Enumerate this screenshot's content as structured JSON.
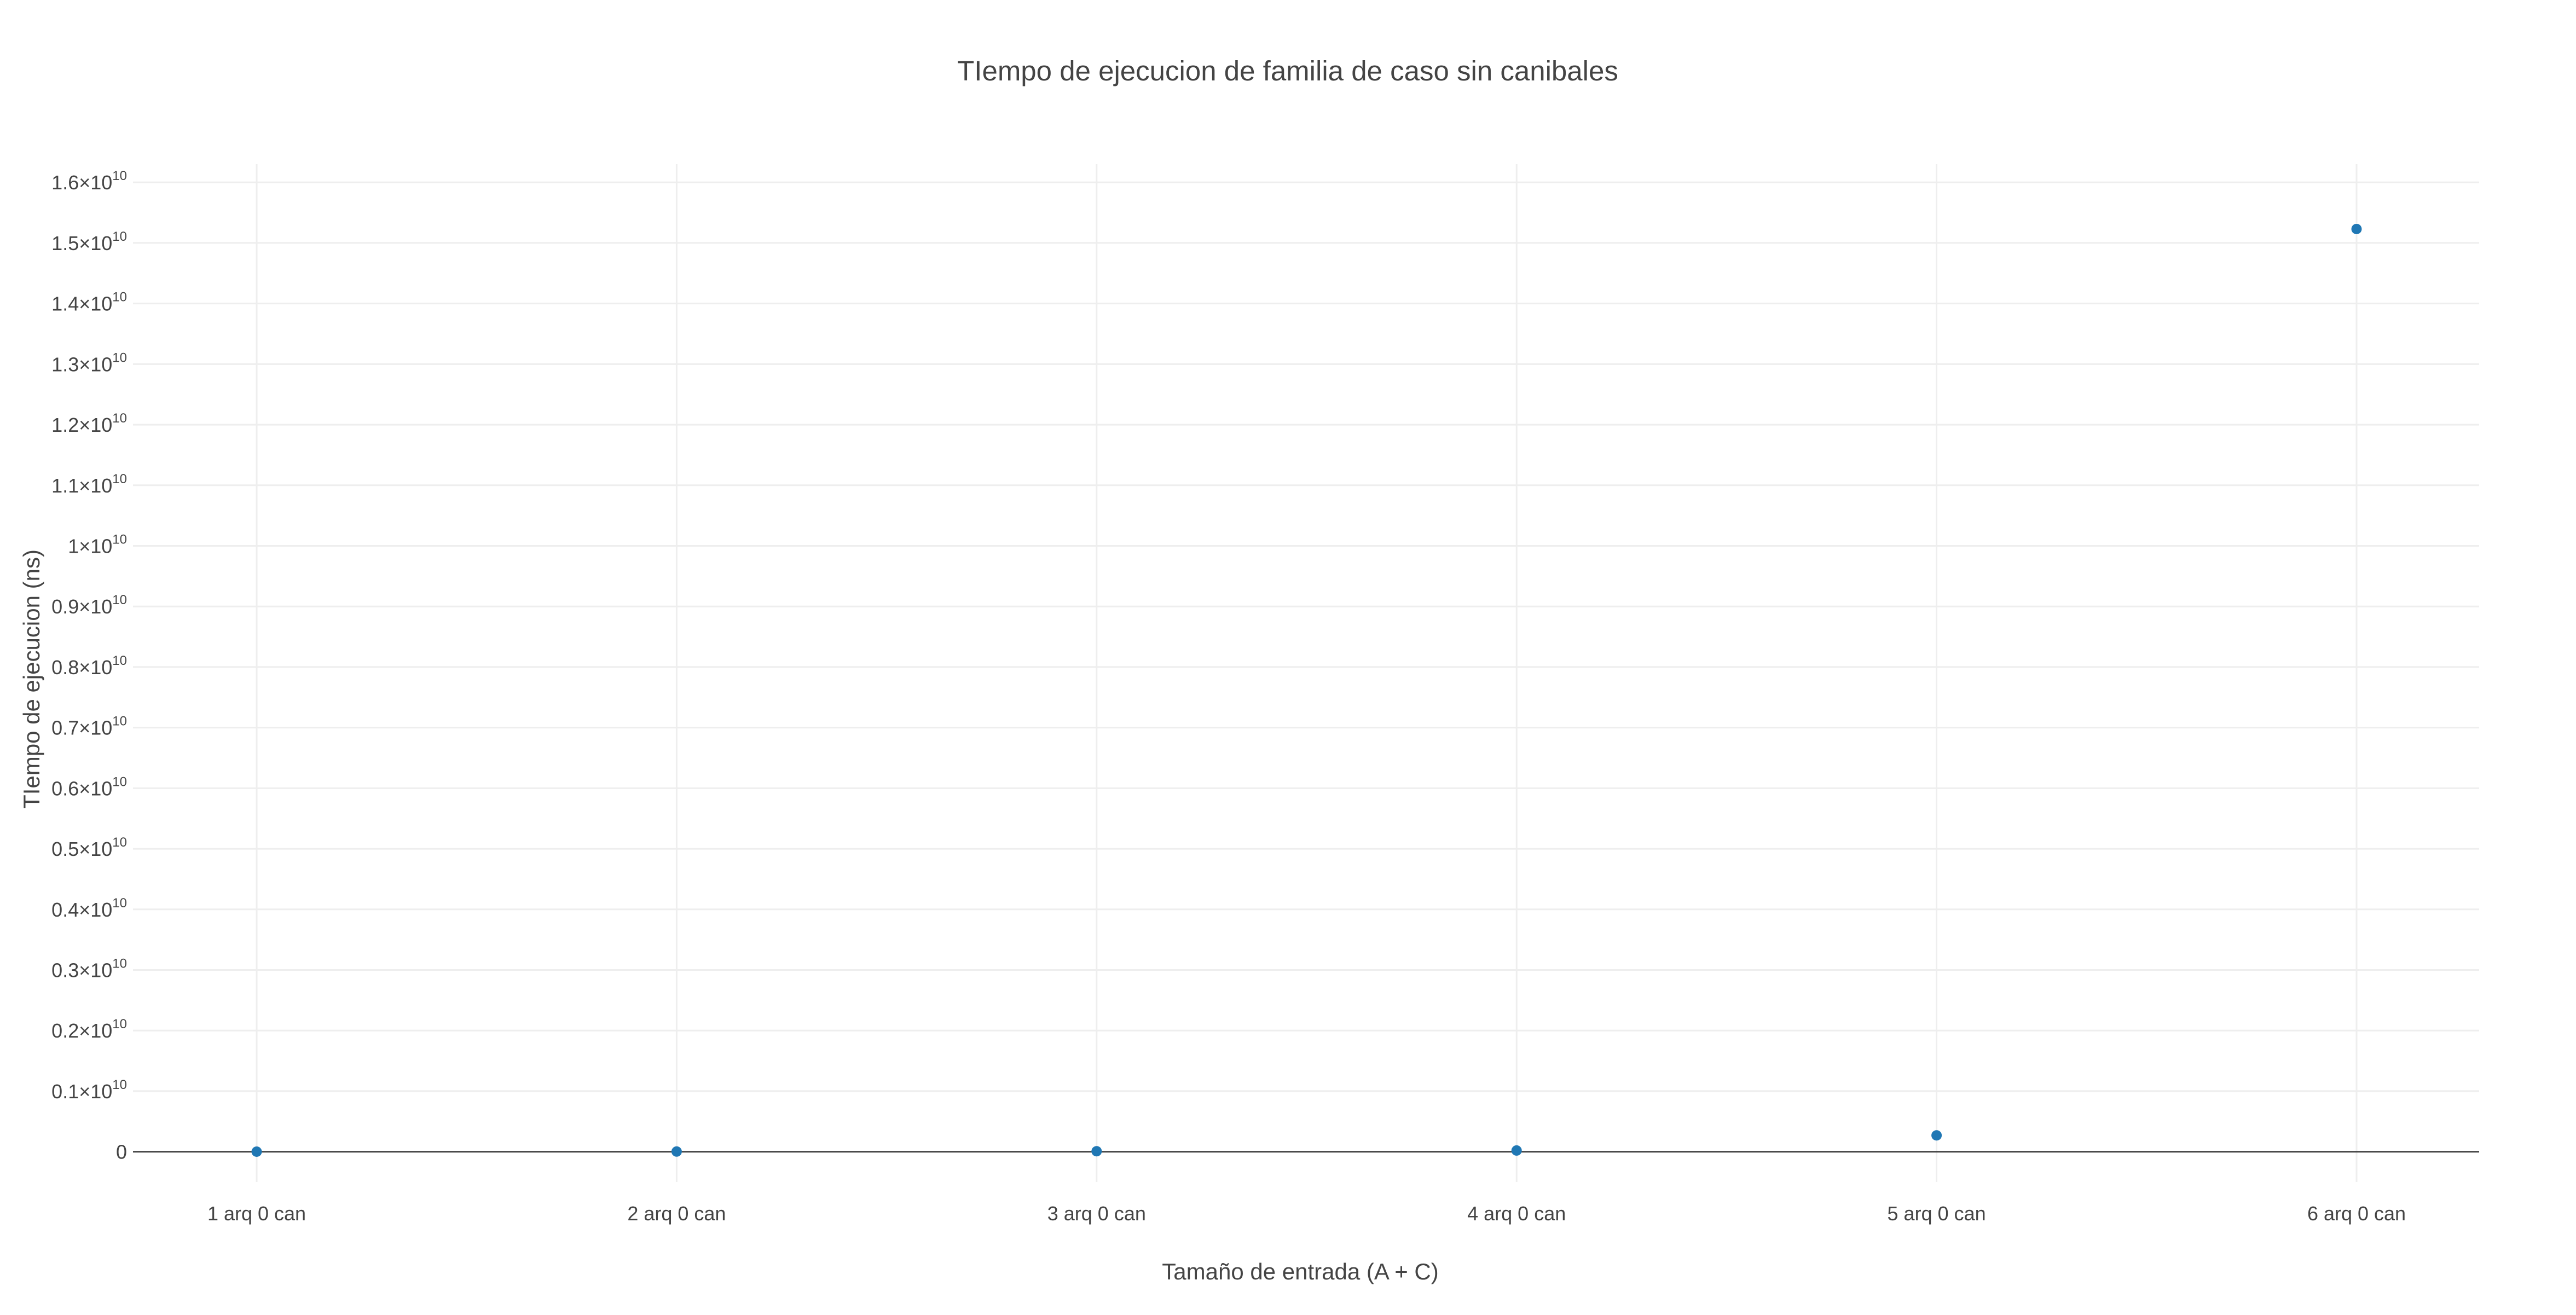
{
  "chart_data": {
    "type": "scatter",
    "title": "TIempo de ejecucion de familia de caso sin canibales",
    "xlabel": "Tamaño de entrada (A + C)",
    "ylabel": "TIempo de ejecucion (ns)",
    "categories": [
      "1 arq 0 can",
      "2 arq 0 can",
      "3 arq 0 can",
      "4 arq 0 can",
      "5 arq 0 can",
      "6 arq 0 can"
    ],
    "values": [
      1000000,
      3000000,
      8000000,
      20000000,
      270000000,
      15230000000
    ],
    "ylim": [
      -500000000,
      16300000000
    ],
    "yticks": [
      {
        "value": 0,
        "mantissa": "0",
        "exp": ""
      },
      {
        "value": 1000000000,
        "mantissa": "0.1×10",
        "exp": "10"
      },
      {
        "value": 2000000000,
        "mantissa": "0.2×10",
        "exp": "10"
      },
      {
        "value": 3000000000,
        "mantissa": "0.3×10",
        "exp": "10"
      },
      {
        "value": 4000000000,
        "mantissa": "0.4×10",
        "exp": "10"
      },
      {
        "value": 5000000000,
        "mantissa": "0.5×10",
        "exp": "10"
      },
      {
        "value": 6000000000,
        "mantissa": "0.6×10",
        "exp": "10"
      },
      {
        "value": 7000000000,
        "mantissa": "0.7×10",
        "exp": "10"
      },
      {
        "value": 8000000000,
        "mantissa": "0.8×10",
        "exp": "10"
      },
      {
        "value": 9000000000,
        "mantissa": "0.9×10",
        "exp": "10"
      },
      {
        "value": 10000000000,
        "mantissa": "1×10",
        "exp": "10"
      },
      {
        "value": 11000000000,
        "mantissa": "1.1×10",
        "exp": "10"
      },
      {
        "value": 12000000000,
        "mantissa": "1.2×10",
        "exp": "10"
      },
      {
        "value": 13000000000,
        "mantissa": "1.3×10",
        "exp": "10"
      },
      {
        "value": 14000000000,
        "mantissa": "1.4×10",
        "exp": "10"
      },
      {
        "value": 15000000000,
        "mantissa": "1.5×10",
        "exp": "10"
      },
      {
        "value": 16000000000,
        "mantissa": "1.6×10",
        "exp": "10"
      }
    ],
    "grid": true,
    "legend": "none",
    "colors": {
      "marker": "#1f77b4",
      "grid": "#eeeeee",
      "zeroline": "#444444",
      "text": "#444444",
      "background": "#ffffff"
    }
  }
}
